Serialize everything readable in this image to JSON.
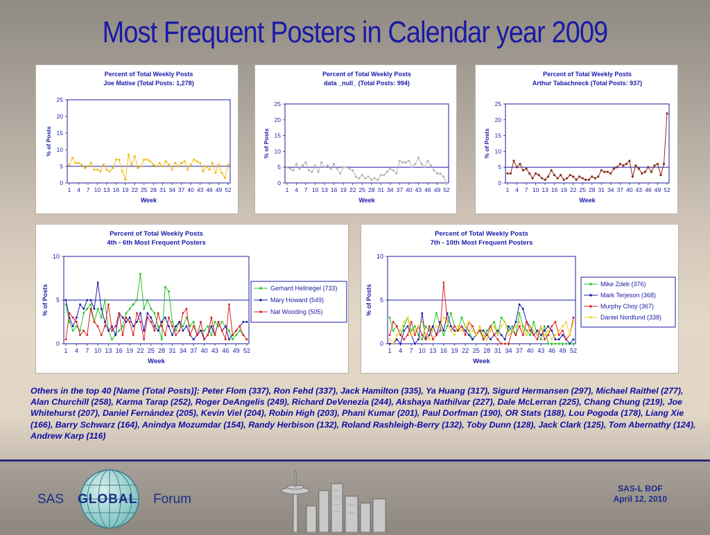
{
  "slide": {
    "title": "Most Frequent Posters in Calendar year 2009",
    "others_text": "Others in the top 40 [Name (Total Posts)]: Peter Flom (337), Ron Fehd (337), Jack Hamilton (335), Ya Huang (317), Sigurd Hermansen (297), Michael Raithel (277), Alan Churchill (258), Karma Tarap (252), Roger DeAngelis (249), Richard DeVenezia (244), Akshaya Nathilvar (227), Dale McLerran (225), Chang Chung (219), Joe Whitehurst (207), Daniel Fernández (205), Kevin Viel (204), Robin High (203), Phani Kumar (201), Paul Dorfman (190), OR Stats (188), Lou Pogoda (178), Liang Xie (166), Barry Schwarz (164), Anindya Mozumdar (154), Randy Herbison (132), Roland Rashleigh-Berry (132), Toby Dunn (128), Jack Clark (125), Tom Abernathy (124), Andrew Karp (116)"
  },
  "footer": {
    "logo_sas": "SAS",
    "logo_global": "GLOBAL",
    "logo_forum": "Forum",
    "bof_line1": "SAS-L BOF",
    "bof_line2": "April 12, 2010",
    "colors": {
      "text": "#1c2d8a",
      "rule": "#2a2a78"
    }
  },
  "chart_data": [
    {
      "type": "line",
      "title": "Percent of Total Weekly Posts",
      "subtitle": "Joe Matise (Total Posts: 1,278)",
      "xlabel": "Week",
      "ylabel": "% of Posts",
      "ylim": [
        0,
        25
      ],
      "yticks": [
        0,
        5,
        10,
        15,
        20,
        25
      ],
      "xticks": [
        1,
        4,
        7,
        10,
        13,
        16,
        19,
        22,
        25,
        28,
        31,
        34,
        37,
        40,
        43,
        46,
        49,
        52
      ],
      "reference_line": 5,
      "grid": false,
      "series": [
        {
          "name": "",
          "color": "#f2bd1a",
          "values": [
            5.5,
            7.5,
            6,
            6,
            5.5,
            4.5,
            5,
            6,
            4,
            4,
            3.5,
            5.5,
            4,
            3.5,
            4.5,
            7,
            7,
            3.5,
            1,
            8.5,
            5.5,
            8,
            4.5,
            5,
            7,
            7,
            6.5,
            5.5,
            5,
            6,
            5,
            6.5,
            5.5,
            4,
            6,
            5,
            6,
            6.5,
            4,
            5.5,
            7,
            6.5,
            6,
            3.5,
            5,
            4,
            6,
            3,
            5.5,
            3,
            1.5,
            5.5
          ]
        }
      ]
    },
    {
      "type": "line",
      "title": "Percent of Total Weekly Posts",
      "subtitle": "data _null_ (Total Posts: 994)",
      "xlabel": "Week",
      "ylabel": "% of Posts",
      "ylim": [
        0,
        25
      ],
      "yticks": [
        0,
        5,
        10,
        15,
        20,
        25
      ],
      "xticks": [
        1,
        4,
        7,
        10,
        13,
        16,
        19,
        22,
        25,
        28,
        31,
        34,
        37,
        40,
        43,
        46,
        49,
        52
      ],
      "reference_line": 5,
      "grid": false,
      "series": [
        {
          "name": "",
          "color": "#b5b5b5",
          "values": [
            5,
            4.5,
            4,
            6,
            4.5,
            5.5,
            6.5,
            4,
            3.5,
            5.5,
            3.5,
            6.5,
            5,
            5.5,
            4.5,
            6,
            4.5,
            3,
            5,
            5,
            4.5,
            4,
            2,
            1.5,
            2.5,
            1.5,
            2,
            1,
            1.5,
            1,
            2.5,
            2.5,
            3.5,
            4.5,
            4,
            3,
            7,
            6.5,
            6.5,
            7,
            5,
            6,
            8,
            6,
            5,
            7,
            5.5,
            4,
            3,
            3,
            2,
            0
          ]
        }
      ]
    },
    {
      "type": "line",
      "title": "Percent of Total Weekly Posts",
      "subtitle": "Arthur Tabachneck (Total Posts: 937)",
      "xlabel": "Week",
      "ylabel": "% of Posts",
      "ylim": [
        0,
        25
      ],
      "yticks": [
        0,
        5,
        10,
        15,
        20,
        25
      ],
      "xticks": [
        1,
        4,
        7,
        10,
        13,
        16,
        19,
        22,
        25,
        28,
        31,
        34,
        37,
        40,
        43,
        46,
        49,
        52
      ],
      "reference_line": 5,
      "grid": false,
      "series": [
        {
          "name": "",
          "color": "#8b2a1a",
          "values": [
            3,
            3,
            7,
            5,
            6,
            4,
            4.5,
            3,
            1.5,
            3,
            2.5,
            1.5,
            1,
            2,
            4,
            2.5,
            1.5,
            2.5,
            1,
            1.5,
            2.5,
            2,
            1,
            2,
            1.5,
            1,
            1,
            2,
            1.5,
            2,
            4,
            3.5,
            3.5,
            3,
            4.5,
            5,
            6,
            5.5,
            6,
            7,
            2,
            5.5,
            4.5,
            3,
            3.5,
            5,
            3.5,
            5.5,
            6,
            2.5,
            6,
            22
          ]
        }
      ]
    },
    {
      "type": "line",
      "title": "Percent of Total Weekly Posts",
      "subtitle": "4th - 6th Most Frequent Posters",
      "xlabel": "Week",
      "ylabel": "% of Posts",
      "ylim": [
        0,
        10
      ],
      "yticks": [
        0,
        5,
        10
      ],
      "xticks": [
        1,
        4,
        7,
        10,
        13,
        16,
        19,
        22,
        25,
        28,
        31,
        34,
        37,
        40,
        43,
        46,
        49,
        52
      ],
      "reference_line": 5,
      "grid": false,
      "legend": "right",
      "series": [
        {
          "name": "Gerhard Hellriegel (733)",
          "color": "#22c322",
          "values": [
            4.5,
            2.5,
            1.5,
            2,
            1.5,
            3.5,
            4,
            4.5,
            2.5,
            4,
            3,
            5,
            1.5,
            0.5,
            1,
            1.5,
            2,
            3.5,
            4,
            4.5,
            5,
            8,
            4,
            5,
            4,
            3.5,
            2,
            0.5,
            6.5,
            6,
            2.5,
            1.5,
            2.5,
            2,
            3,
            2,
            2.5,
            1,
            1.5,
            1.5,
            2,
            1,
            2.5,
            2,
            2.5,
            2,
            1.5,
            0.5,
            1,
            1.5,
            1,
            0.5
          ]
        },
        {
          "name": "Mary Howard (549)",
          "color": "#1a1aa8",
          "values": [
            5,
            3,
            2,
            3,
            4.5,
            4,
            5,
            5,
            4,
            7,
            4,
            2.5,
            1.5,
            2,
            1,
            3.5,
            3,
            2.5,
            3,
            2,
            2.5,
            3.5,
            1.5,
            3.5,
            3,
            2,
            1.5,
            2.5,
            3,
            2,
            1,
            2,
            2.5,
            1.5,
            2,
            1,
            0.5,
            1,
            1.5,
            0.5,
            1,
            2,
            1,
            2.5,
            1.5,
            2,
            0.5,
            1,
            1.5,
            2,
            2.5,
            2.5
          ]
        },
        {
          "name": "Nat Wooding (505)",
          "color": "#d92020",
          "values": [
            0.5,
            3.5,
            3,
            2.5,
            1,
            1.5,
            1,
            4,
            2.5,
            2,
            1,
            2,
            4.5,
            1.5,
            2,
            3.5,
            1,
            3,
            2.5,
            1,
            3.5,
            2.5,
            0.5,
            3,
            2.5,
            1.5,
            3.5,
            2,
            1,
            3,
            2,
            1,
            1.5,
            3.5,
            4,
            1,
            2,
            1,
            2.5,
            0.5,
            1,
            3,
            1,
            2.5,
            1.5,
            0.5,
            4.5,
            1,
            1.5,
            2,
            1,
            0.5
          ]
        }
      ]
    },
    {
      "type": "line",
      "title": "Percent of Total Weekly Posts",
      "subtitle": "7th - 10th Most Frequent Posters",
      "xlabel": "Week",
      "ylabel": "% of Posts",
      "ylim": [
        0,
        10
      ],
      "yticks": [
        0,
        5,
        10
      ],
      "xticks": [
        1,
        4,
        7,
        10,
        13,
        16,
        19,
        22,
        25,
        28,
        31,
        34,
        37,
        40,
        43,
        46,
        49,
        52
      ],
      "reference_line": 5,
      "grid": false,
      "legend": "right",
      "series": [
        {
          "name": "Mike Zdeb (376)",
          "color": "#22c322",
          "values": [
            3,
            1.5,
            2,
            1,
            2,
            3,
            1.5,
            2,
            1,
            0.5,
            2,
            1.5,
            2,
            3.5,
            2,
            1,
            2,
            3.5,
            2,
            1.5,
            3,
            2,
            1.5,
            0.5,
            1,
            2,
            0.5,
            1.5,
            2,
            2.5,
            1,
            3,
            2.5,
            1.5,
            2,
            1,
            3.5,
            2,
            1.5,
            1,
            2.5,
            1,
            0.5,
            2,
            0,
            0,
            0,
            0,
            0,
            0,
            0,
            0
          ]
        },
        {
          "name": "Mark Terjeson (368)",
          "color": "#1a1aa8",
          "values": [
            0,
            0,
            0.5,
            0,
            1.5,
            2,
            1,
            0,
            0.5,
            3.5,
            0.5,
            1,
            2,
            1,
            2.5,
            1.5,
            3.5,
            2,
            1.5,
            1.5,
            2,
            1.5,
            1,
            0.5,
            1,
            1.5,
            1.5,
            1,
            0.5,
            1,
            1.5,
            1,
            0.5,
            2,
            1.5,
            2.5,
            4.5,
            4,
            2.5,
            2,
            1,
            1.5,
            1,
            1.5,
            2,
            1.5,
            0.5,
            0.5,
            1,
            0.5,
            0,
            0.5
          ]
        },
        {
          "name": "Murphy Choy (367)",
          "color": "#d92020",
          "values": [
            1,
            2.5,
            2,
            1,
            0.5,
            1,
            2.5,
            1,
            2,
            1,
            0.5,
            2,
            0.5,
            1,
            1.5,
            7,
            2.5,
            1.5,
            2,
            1.5,
            2,
            1,
            2.5,
            2,
            1,
            1.5,
            0.5,
            1,
            2,
            1,
            0.5,
            0,
            0,
            0,
            1.5,
            1,
            2,
            1,
            2.5,
            1.5,
            1,
            0.5,
            2,
            0.5,
            1,
            2,
            2.5,
            1,
            1.5,
            0.5,
            1,
            3
          ]
        },
        {
          "name": "Daniel Nordlund (338)",
          "color": "#eed02a",
          "values": [
            0.5,
            0,
            1,
            1.5,
            2.5,
            3,
            1,
            1.5,
            2,
            2.5,
            1,
            0.5,
            1.5,
            2,
            2,
            3,
            2.5,
            1.5,
            1,
            2,
            1.5,
            2,
            2.5,
            1.5,
            1,
            2,
            1,
            0.5,
            1.5,
            2,
            1,
            2,
            2.5,
            1,
            1.5,
            2,
            2.5,
            1.5,
            1,
            2,
            1.5,
            1,
            2,
            1,
            1.5,
            0.5,
            1,
            1.5,
            2,
            2.5,
            1,
            2.5
          ]
        }
      ]
    }
  ]
}
